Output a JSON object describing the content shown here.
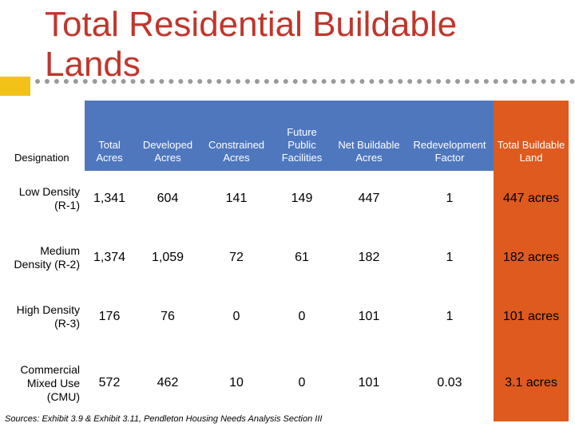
{
  "title": "Total Residential Buildable Lands",
  "table": {
    "headers": [
      "Designation",
      "Total Acres",
      "Developed Acres",
      "Constrained Acres",
      "Future Public Facilities",
      "Net Buildable Acres",
      "Redevelopment Factor",
      "Total Buildable Land"
    ],
    "rows": [
      [
        "Low Density (R-1)",
        "1,341",
        "604",
        "141",
        "149",
        "447",
        "1",
        "447 acres"
      ],
      [
        "Medium Density (R-2)",
        "1,374",
        "1,059",
        "72",
        "61",
        "182",
        "1",
        "182 acres"
      ],
      [
        "High Density (R-3)",
        "176",
        "76",
        "0",
        "0",
        "101",
        "1",
        "101 acres"
      ],
      [
        "Commercial Mixed Use (CMU)",
        "572",
        "462",
        "10",
        "0",
        "101",
        "0.03",
        "3.1 acres"
      ]
    ]
  },
  "sources": "Sources: Exhibit 3.9 & Exhibit 3.11, Pendleton Housing Needs Analysis Section III",
  "colors": {
    "title": "#c0362c",
    "header_blue": "#4f77be",
    "total_orange": "#de5a1e",
    "accent_yellow": "#f2c218"
  }
}
